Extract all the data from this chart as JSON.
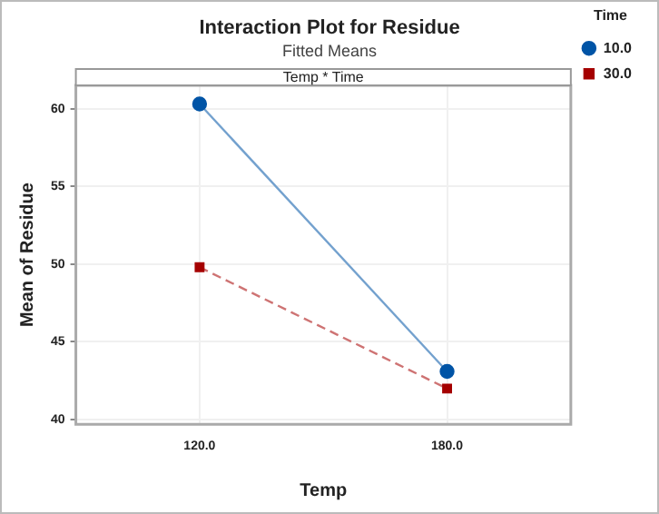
{
  "chart_data": {
    "type": "line",
    "title": "Interaction Plot for Residue",
    "subtitle": "Fitted Means",
    "xlabel": "Temp",
    "ylabel": "Mean of Residue",
    "legend_title": "Time",
    "annotations": [
      "Temp * Time"
    ],
    "categories": [
      "120.0",
      "180.0"
    ],
    "series": [
      {
        "name": "10.0",
        "color": "#0054a6",
        "values": [
          60.3,
          43.1
        ],
        "marker": "circle",
        "line_style": "solid"
      },
      {
        "name": "30.0",
        "color": "#a50000",
        "values": [
          49.8,
          42.0
        ],
        "marker": "square",
        "line_style": "dashed"
      }
    ],
    "ylim": [
      39.7,
      61.5
    ],
    "yticks": [
      40,
      45,
      50,
      55,
      60
    ],
    "grid": true,
    "legend": "top right"
  }
}
